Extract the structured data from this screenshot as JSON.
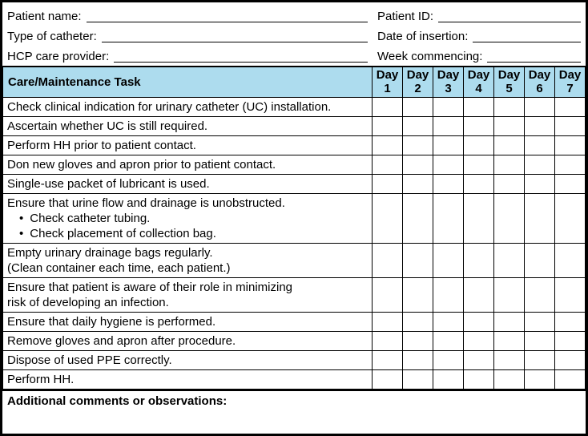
{
  "form": {
    "left_fields": [
      {
        "label": "Patient name:"
      },
      {
        "label": "Type of catheter:"
      },
      {
        "label": "HCP care provider:"
      }
    ],
    "right_fields": [
      {
        "label": "Patient ID:"
      },
      {
        "label": "Date of insertion:"
      },
      {
        "label": "Week commencing:"
      }
    ]
  },
  "checklist": {
    "task_column_header": "Care/Maintenance Task",
    "day_columns": [
      {
        "label": "Day",
        "number": "1"
      },
      {
        "label": "Day",
        "number": "2"
      },
      {
        "label": "Day",
        "number": "3"
      },
      {
        "label": "Day",
        "number": "4"
      },
      {
        "label": "Day",
        "number": "5"
      },
      {
        "label": "Day",
        "number": "6"
      },
      {
        "label": "Day",
        "number": "7"
      }
    ],
    "rows": [
      {
        "lines": [
          "Check clinical indication for urinary catheter (UC) installation."
        ]
      },
      {
        "lines": [
          "Ascertain whether UC is still required."
        ]
      },
      {
        "lines": [
          "Perform HH prior to patient contact."
        ]
      },
      {
        "lines": [
          "Don new gloves and apron prior to patient contact."
        ]
      },
      {
        "lines": [
          "Single-use packet of lubricant is used."
        ]
      },
      {
        "lines": [
          "Ensure that urine flow and drainage is unobstructed."
        ],
        "bullets": [
          "Check catheter tubing.",
          "Check placement of collection bag."
        ]
      },
      {
        "lines": [
          "Empty urinary drainage bags regularly.",
          "(Clean container each time, each patient.)"
        ]
      },
      {
        "lines": [
          "Ensure that patient is aware of their role in minimizing",
          "risk of developing an infection."
        ]
      },
      {
        "lines": [
          "Ensure that daily hygiene is performed."
        ]
      },
      {
        "lines": [
          "Remove gloves and apron after procedure."
        ]
      },
      {
        "lines": [
          "Dispose of used PPE correctly."
        ]
      },
      {
        "lines": [
          "Perform HH."
        ]
      }
    ]
  },
  "comments": {
    "label": "Additional comments or observations:"
  },
  "colors": {
    "header_bg": "#ADDCEE",
    "border": "#000000"
  }
}
